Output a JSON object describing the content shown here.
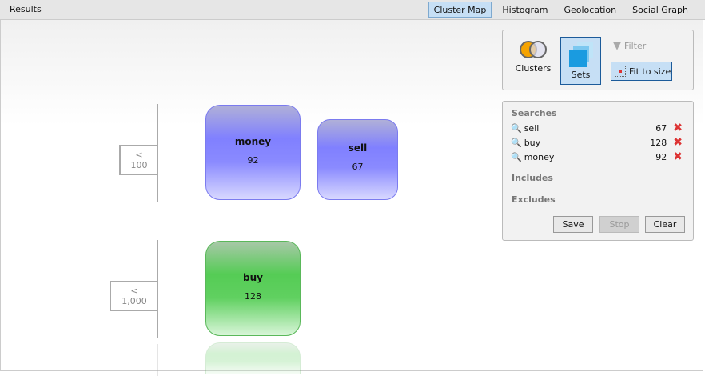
{
  "title": "Results",
  "tabs": [
    {
      "label": "Cluster Map",
      "active": true
    },
    {
      "label": "Histogram"
    },
    {
      "label": "Geolocation"
    },
    {
      "label": "Social Graph"
    }
  ],
  "groups": [
    {
      "label": "< 100"
    },
    {
      "label": "< 1,000"
    }
  ],
  "nodes": [
    {
      "name": "money",
      "count": "92",
      "color": "#8080ff"
    },
    {
      "name": "sell",
      "count": "67",
      "color": "#8080ff"
    },
    {
      "name": "buy",
      "count": "128",
      "color": "#55cc55"
    }
  ],
  "toolbar": {
    "clusters": "Clusters",
    "sets": "Sets",
    "filter": "Filter",
    "fit": "Fit to size"
  },
  "searches": {
    "header": "Searches",
    "items": [
      {
        "term": "sell",
        "count": "67"
      },
      {
        "term": "buy",
        "count": "128"
      },
      {
        "term": "money",
        "count": "92"
      }
    ],
    "includes": "Includes",
    "excludes": "Excludes",
    "save": "Save",
    "stop": "Stop",
    "clear": "Clear"
  }
}
